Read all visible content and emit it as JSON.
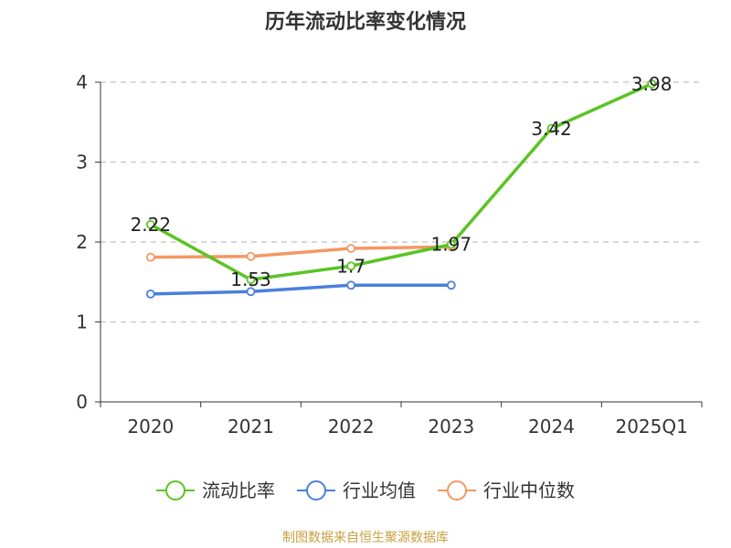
{
  "chart_data": {
    "type": "line",
    "title": "历年流动比率变化情况",
    "categories": [
      "2020",
      "2021",
      "2022",
      "2023",
      "2024",
      "2025Q1"
    ],
    "ylim": [
      0,
      4
    ],
    "yticks": [
      0,
      1,
      2,
      3,
      4
    ],
    "grid": true,
    "legend_position": "bottom",
    "series": [
      {
        "name": "流动比率",
        "color": "#5bc424",
        "values": [
          2.22,
          1.53,
          1.7,
          1.97,
          3.42,
          3.98
        ],
        "data_labels": [
          "2.22",
          "1.53",
          "1.7",
          "1.97",
          "3.42",
          "3.98"
        ]
      },
      {
        "name": "行业均值",
        "color": "#4a7fdc",
        "values": [
          1.35,
          1.38,
          1.46,
          1.46,
          null,
          null
        ]
      },
      {
        "name": "行业中位数",
        "color": "#f59763",
        "values": [
          1.81,
          1.82,
          1.92,
          1.94,
          null,
          null
        ]
      }
    ]
  },
  "source": "制图数据来自恒生聚源数据库"
}
